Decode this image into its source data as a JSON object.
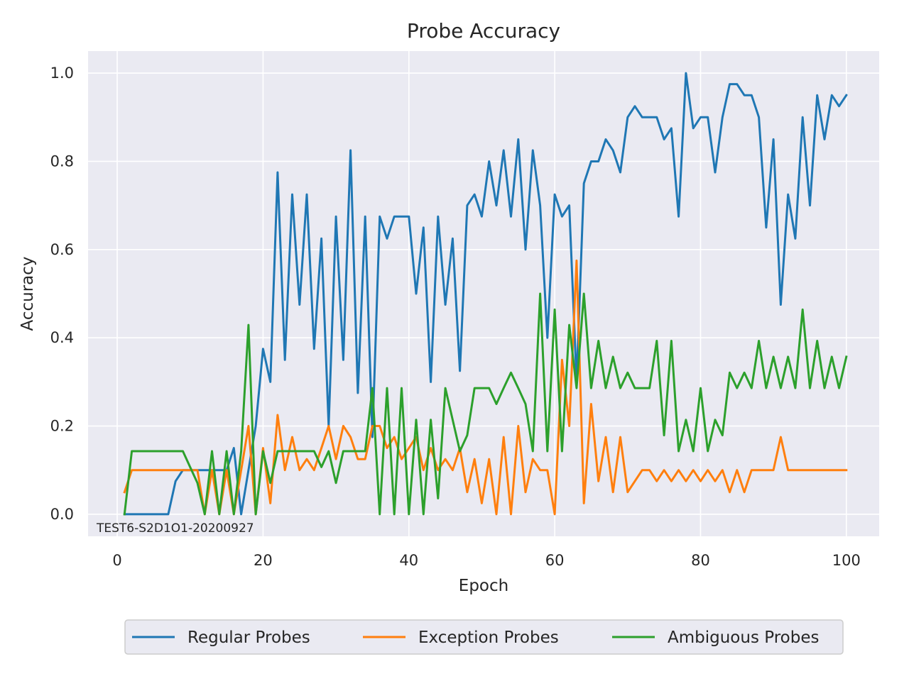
{
  "chart_data": {
    "type": "line",
    "title": "Probe Accuracy",
    "xlabel": "Epoch",
    "ylabel": "Accuracy",
    "xlim": [
      -4,
      104.5
    ],
    "ylim": [
      -0.05,
      1.05
    ],
    "xticks": [
      0,
      20,
      40,
      60,
      80,
      100
    ],
    "yticks": [
      0.0,
      0.2,
      0.4,
      0.6,
      0.8,
      1.0
    ],
    "xtick_labels": [
      "0",
      "20",
      "40",
      "60",
      "80",
      "100"
    ],
    "ytick_labels": [
      "0.0",
      "0.2",
      "0.4",
      "0.6",
      "0.8",
      "1.0"
    ],
    "grid": true,
    "legend_position": "bottom-center",
    "annotation": "TEST6-S2D1O1-20200927",
    "x": [
      1,
      2,
      3,
      4,
      5,
      6,
      7,
      8,
      9,
      10,
      11,
      12,
      13,
      14,
      15,
      16,
      17,
      18,
      19,
      20,
      21,
      22,
      23,
      24,
      25,
      26,
      27,
      28,
      29,
      30,
      31,
      32,
      33,
      34,
      35,
      36,
      37,
      38,
      39,
      40,
      41,
      42,
      43,
      44,
      45,
      46,
      47,
      48,
      49,
      50,
      51,
      52,
      53,
      54,
      55,
      56,
      57,
      58,
      59,
      60,
      61,
      62,
      63,
      64,
      65,
      66,
      67,
      68,
      69,
      70,
      71,
      72,
      73,
      74,
      75,
      76,
      77,
      78,
      79,
      80,
      81,
      82,
      83,
      84,
      85,
      86,
      87,
      88,
      89,
      90,
      91,
      92,
      93,
      94,
      95,
      96,
      97,
      98,
      99,
      100
    ],
    "series": [
      {
        "name": "Regular Probes",
        "color": "#1f77b4",
        "values": [
          0.0,
          0.0,
          0.0,
          0.0,
          0.0,
          0.0,
          0.0,
          0.075,
          0.1,
          0.1,
          0.1,
          0.1,
          0.1,
          0.1,
          0.1,
          0.15,
          0.0,
          0.1,
          0.2,
          0.375,
          0.3,
          0.775,
          0.35,
          0.725,
          0.475,
          0.725,
          0.375,
          0.625,
          0.2,
          0.675,
          0.35,
          0.825,
          0.275,
          0.675,
          0.175,
          0.675,
          0.625,
          0.675,
          0.675,
          0.675,
          0.5,
          0.65,
          0.3,
          0.675,
          0.475,
          0.625,
          0.325,
          0.7,
          0.725,
          0.675,
          0.8,
          0.7,
          0.825,
          0.675,
          0.85,
          0.6,
          0.825,
          0.7,
          0.4,
          0.725,
          0.675,
          0.7,
          0.3,
          0.75,
          0.8,
          0.8,
          0.85,
          0.825,
          0.775,
          0.9,
          0.925,
          0.9,
          0.9,
          0.9,
          0.85,
          0.875,
          0.675,
          1.0,
          0.875,
          0.9,
          0.9,
          0.775,
          0.9,
          0.975,
          0.975,
          0.95,
          0.95,
          0.9,
          0.65,
          0.85,
          0.475,
          0.725,
          0.625,
          0.9,
          0.7,
          0.95,
          0.85,
          0.95,
          0.925,
          0.95
        ]
      },
      {
        "name": "Exception Probes",
        "color": "#ff7f0e",
        "values": [
          0.05,
          0.1,
          0.1,
          0.1,
          0.1,
          0.1,
          0.1,
          0.1,
          0.1,
          0.1,
          0.1,
          0.0,
          0.1,
          0.0,
          0.1,
          0.0,
          0.1,
          0.2,
          0.0,
          0.15,
          0.025,
          0.225,
          0.1,
          0.175,
          0.1,
          0.125,
          0.1,
          0.15,
          0.2,
          0.125,
          0.2,
          0.175,
          0.125,
          0.125,
          0.2,
          0.2,
          0.15,
          0.175,
          0.125,
          0.15,
          0.175,
          0.1,
          0.15,
          0.1,
          0.125,
          0.1,
          0.15,
          0.05,
          0.125,
          0.025,
          0.125,
          0.0,
          0.175,
          0.0,
          0.2,
          0.05,
          0.125,
          0.1,
          0.1,
          0.0,
          0.35,
          0.2,
          0.575,
          0.025,
          0.25,
          0.075,
          0.175,
          0.05,
          0.175,
          0.05,
          0.075,
          0.1,
          0.1,
          0.075,
          0.1,
          0.075,
          0.1,
          0.075,
          0.1,
          0.075,
          0.1,
          0.075,
          0.1,
          0.05,
          0.1,
          0.05,
          0.1,
          0.1,
          0.1,
          0.1,
          0.175,
          0.1,
          0.1,
          0.1,
          0.1,
          0.1,
          0.1,
          0.1,
          0.1,
          0.1
        ]
      },
      {
        "name": "Ambiguous Probes",
        "color": "#2ca02c",
        "values": [
          0.0,
          0.143,
          0.143,
          0.143,
          0.143,
          0.143,
          0.143,
          0.143,
          0.143,
          0.107,
          0.071,
          0.0,
          0.143,
          0.0,
          0.143,
          0.0,
          0.143,
          0.429,
          0.0,
          0.143,
          0.071,
          0.143,
          0.143,
          0.143,
          0.143,
          0.143,
          0.143,
          0.107,
          0.143,
          0.071,
          0.143,
          0.143,
          0.143,
          0.143,
          0.286,
          0.0,
          0.286,
          0.0,
          0.286,
          0.0,
          0.214,
          0.0,
          0.214,
          0.036,
          0.286,
          0.214,
          0.143,
          0.179,
          0.286,
          0.286,
          0.286,
          0.25,
          0.286,
          0.321,
          0.286,
          0.25,
          0.143,
          0.5,
          0.143,
          0.464,
          0.143,
          0.429,
          0.286,
          0.5,
          0.286,
          0.393,
          0.286,
          0.357,
          0.286,
          0.321,
          0.286,
          0.286,
          0.286,
          0.393,
          0.179,
          0.393,
          0.143,
          0.214,
          0.143,
          0.286,
          0.143,
          0.214,
          0.179,
          0.321,
          0.286,
          0.321,
          0.286,
          0.393,
          0.286,
          0.357,
          0.286,
          0.357,
          0.286,
          0.464,
          0.286,
          0.393,
          0.286,
          0.357,
          0.286,
          0.357
        ]
      }
    ]
  }
}
